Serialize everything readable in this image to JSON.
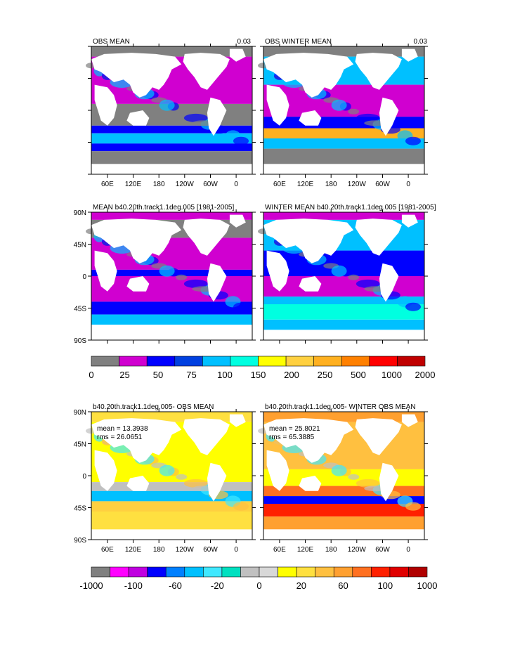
{
  "panels": [
    {
      "id": "obs-mean",
      "title": "OBS MEAN",
      "corner": "0.03",
      "kind": "mld",
      "style": "obs",
      "mean_text": "",
      "rms_text": "",
      "show_lat": false,
      "show_lon": true
    },
    {
      "id": "obs-winter-mean",
      "title": "OBS WINTER MEAN",
      "corner": "0.03",
      "kind": "mld",
      "style": "obs_winter",
      "mean_text": "",
      "rms_text": "",
      "show_lat": false,
      "show_lon": true
    },
    {
      "id": "model-mean",
      "title": "MEAN b40.20th.track1.1deg.005 [1981-2005]",
      "corner": "",
      "kind": "mld",
      "style": "model",
      "mean_text": "",
      "rms_text": "",
      "show_lat": true,
      "show_lon": false
    },
    {
      "id": "model-winter-mean",
      "title": "WINTER MEAN b40.20th.track1.1deg.005 [1981-2005]",
      "corner": "",
      "kind": "mld",
      "style": "model_winter",
      "mean_text": "",
      "rms_text": "",
      "show_lat": false,
      "show_lon": false
    },
    {
      "id": "diff-mean",
      "title": "b40.20th.track1.1deg.005- OBS MEAN",
      "corner": "",
      "kind": "diff",
      "style": "diff",
      "mean_text": "mean = 13.3938",
      "rms_text": "rms = 26.0651",
      "show_lat": true,
      "show_lon": true
    },
    {
      "id": "diff-winter-mean",
      "title": "b40.20th.track1.1deg.005- WINTER OBS MEAN",
      "corner": "",
      "kind": "diff",
      "style": "diff_winter",
      "mean_text": "mean = 25.8021",
      "rms_text": "rms = 65.3885",
      "show_lat": false,
      "show_lon": true
    }
  ],
  "lon_labels": [
    "60E",
    "120E",
    "180",
    "120W",
    "60W",
    "0"
  ],
  "lat_labels": [
    "90N",
    "45N",
    "0",
    "45S",
    "90S"
  ],
  "colorbar_top": {
    "colors": [
      "#808080",
      "#d000d0",
      "#0000ff",
      "#0040e0",
      "#00c0ff",
      "#00ffe0",
      "#ffff00",
      "#ffd040",
      "#ffb020",
      "#ff8000",
      "#ff0000",
      "#c00000"
    ],
    "labels": [
      "0",
      "25",
      "50",
      "75",
      "100",
      "150",
      "200",
      "250",
      "500",
      "1000",
      "2000"
    ]
  },
  "colorbar_bottom": {
    "colors": [
      "#808080",
      "#ff00ff",
      "#c000e0",
      "#0000ff",
      "#0080ff",
      "#00c0ff",
      "#40e8ff",
      "#00e0c0",
      "#c0c0c0",
      "#d8d8d8",
      "#ffff00",
      "#ffe040",
      "#ffc040",
      "#ffa030",
      "#ff7020",
      "#ff2000",
      "#e00000",
      "#b00000"
    ],
    "labels": [
      "-1000",
      "-100",
      "-60",
      "-20",
      "0",
      "20",
      "60",
      "100",
      "1000"
    ]
  }
}
